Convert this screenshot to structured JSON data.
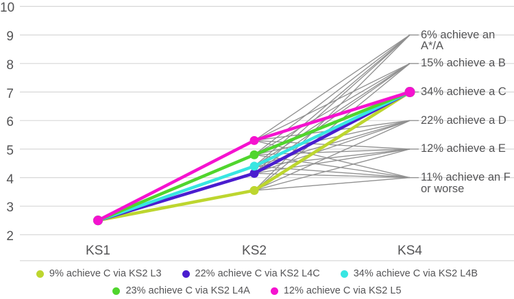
{
  "chart_data": {
    "type": "line",
    "x_categories": [
      "KS1",
      "KS2",
      "KS4"
    ],
    "ylim": [
      2,
      10
    ],
    "yticks": [
      2,
      3,
      4,
      5,
      6,
      7,
      8,
      9,
      10
    ],
    "grid": true,
    "series": [
      {
        "name": "9% achieve C via KS2 L3",
        "color": "#bdd62f",
        "points": {
          "KS1": 2.5,
          "KS2": 3.55,
          "KS4": 7
        }
      },
      {
        "name": "22% achieve C via KS2 L4C",
        "color": "#4a1dcf",
        "points": {
          "KS1": 2.5,
          "KS2": 4.15,
          "KS4": 7
        }
      },
      {
        "name": "34% achieve C via KS2 L4B",
        "color": "#38e6e2",
        "points": {
          "KS1": 2.5,
          "KS2": 4.4,
          "KS4": 7
        }
      },
      {
        "name": "23% achieve C via KS2 L4A",
        "color": "#50d52d",
        "points": {
          "KS1": 2.5,
          "KS2": 4.8,
          "KS4": 7
        }
      },
      {
        "name": "12% achieve C via KS2 L5",
        "color": "#f512cf",
        "points": {
          "KS1": 2.5,
          "KS2": 5.3,
          "KS4": 7
        }
      }
    ],
    "outcome_fan": {
      "from": "KS2",
      "to": "KS4",
      "line_color": "#909090",
      "targets": [
        {
          "label": "6% achieve an A*/A",
          "value": 9
        },
        {
          "label": "15% achieve a B",
          "value": 8
        },
        {
          "label": "34% achieve a C",
          "value": 7
        },
        {
          "label": "22% achieve a D",
          "value": 6
        },
        {
          "label": "12% achieve a E",
          "value": 5
        },
        {
          "label": "11% achieve an F\nor worse",
          "value": 4
        }
      ]
    },
    "legend": {
      "position": "bottom",
      "rows": [
        [
          0,
          1,
          2
        ],
        [
          3,
          4
        ]
      ]
    },
    "colors": {
      "grid": "#d7d7d7",
      "text": "#545456",
      "fan_gray": "#909090"
    }
  }
}
